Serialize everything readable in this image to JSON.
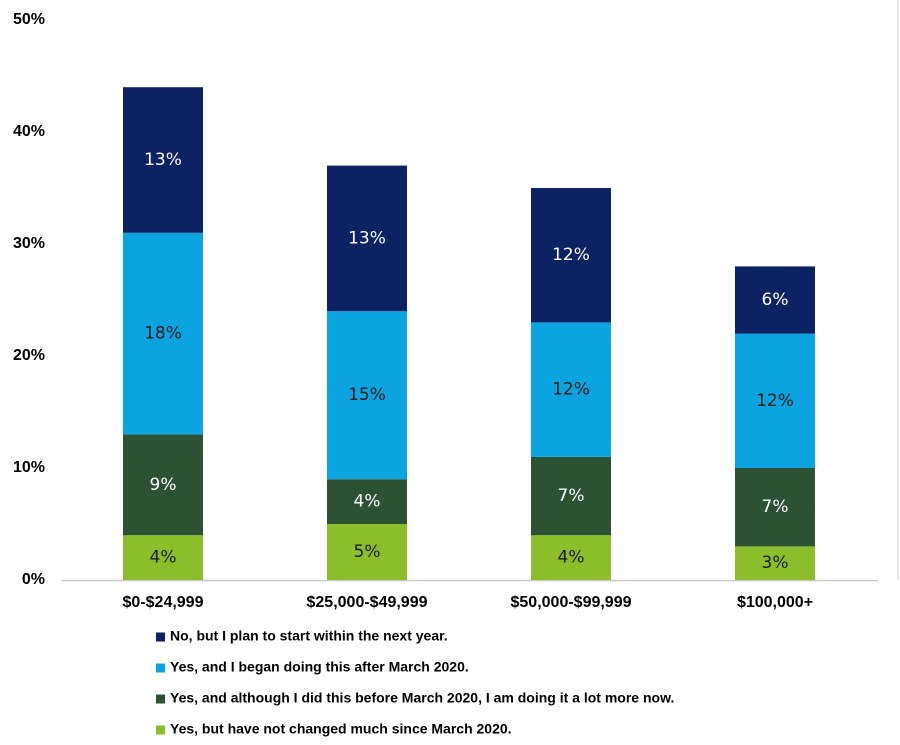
{
  "chart_data": {
    "type": "stacked_bar",
    "categories": [
      "$0-$24,999",
      "$25,000-$49,999",
      "$50,000-$99,999",
      "$100,000+"
    ],
    "series": [
      {
        "name": "No, but I plan to start within the next year.",
        "color": "#0c2263",
        "label_color": "#ffffff",
        "values": [
          13,
          13,
          12,
          6
        ],
        "value_labels": [
          "13%",
          "13%",
          "12%",
          "6%"
        ]
      },
      {
        "name": "Yes, and I began doing this after March 2020.",
        "color": "#0ba3e0",
        "label_color": "#1a1a1a",
        "values": [
          18,
          15,
          12,
          12
        ],
        "value_labels": [
          "18%",
          "15%",
          "12%",
          "12%"
        ]
      },
      {
        "name": "Yes, and although I did this before March 2020, I am doing it a lot more now.",
        "color": "#2c5233",
        "label_color": "#ffffff",
        "values": [
          9,
          4,
          7,
          7
        ],
        "value_labels": [
          "9%",
          "4%",
          "7%",
          "7%"
        ]
      },
      {
        "name": "Yes, but have not changed much since March 2020.",
        "color": "#8cbd2b",
        "label_color": "#1a1a1a",
        "values": [
          4,
          5,
          4,
          3
        ],
        "value_labels": [
          "4%",
          "5%",
          "4%",
          "3%"
        ]
      }
    ],
    "ylim": [
      0,
      50
    ],
    "yticks": [
      {
        "value": 0,
        "label": "0%"
      },
      {
        "value": 10,
        "label": "10%"
      },
      {
        "value": 20,
        "label": "20%"
      },
      {
        "value": 30,
        "label": "30%"
      },
      {
        "value": 40,
        "label": "40%"
      },
      {
        "value": 50,
        "label": "50%"
      }
    ],
    "grid": false
  }
}
